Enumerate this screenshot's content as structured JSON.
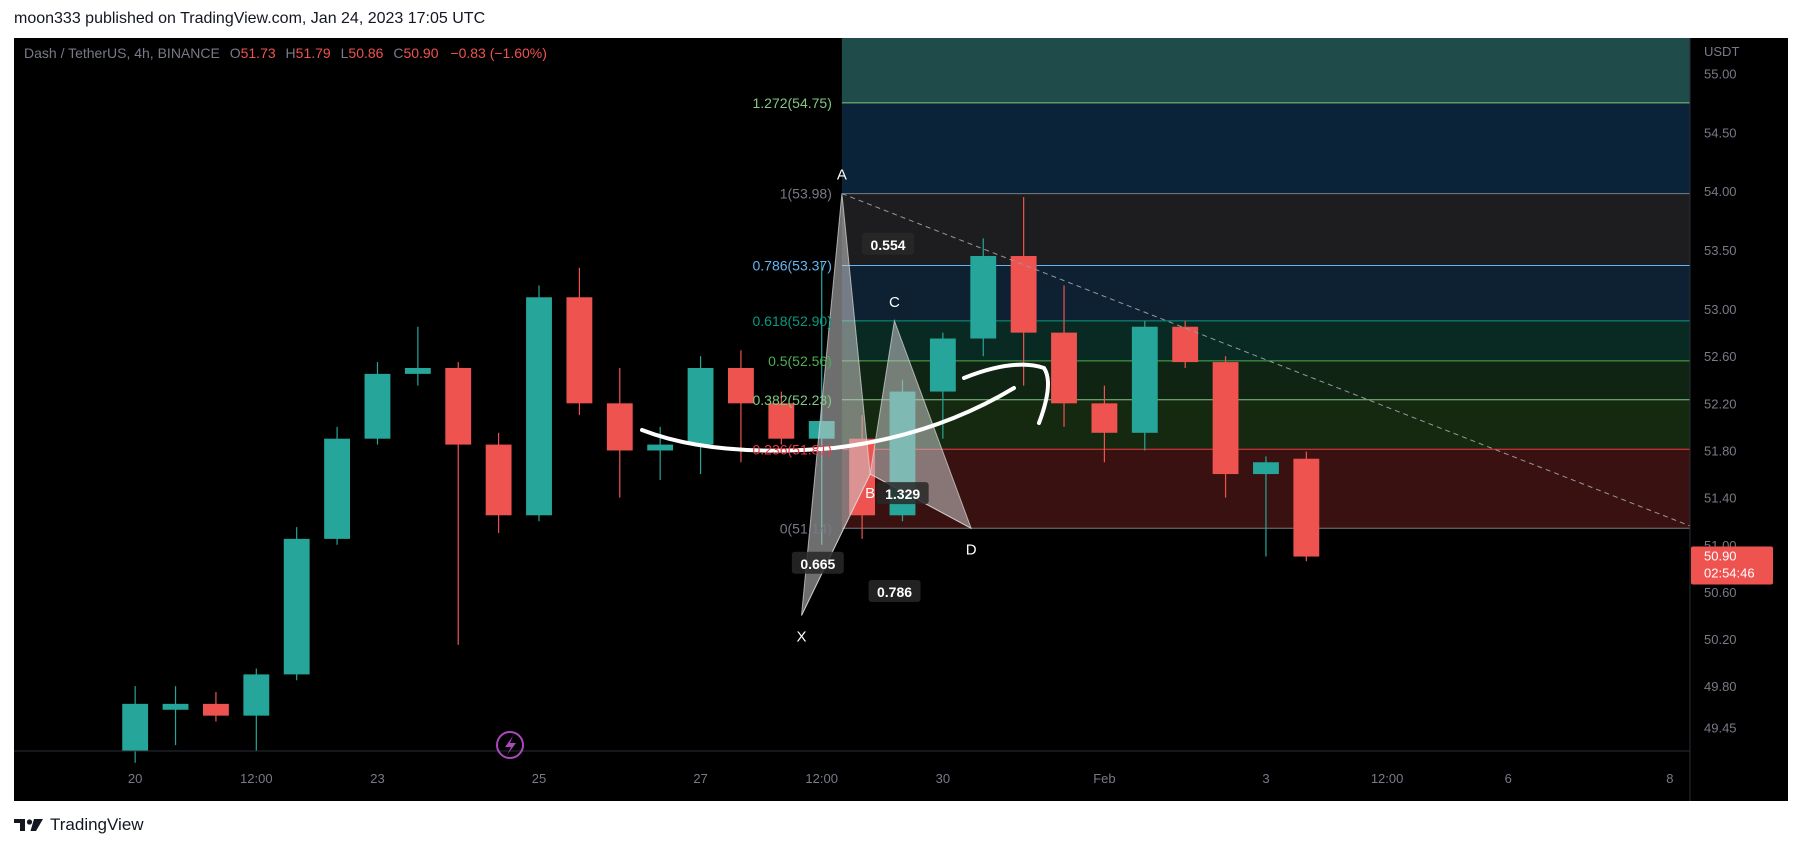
{
  "header": {
    "publisher": "moon333 published on TradingView.com, Jan 24, 2023 17:05 UTC"
  },
  "footer": {
    "brand": "TradingView",
    "logo_icon": "tradingview-logo-icon"
  },
  "colors": {
    "up": "#26a69a",
    "down": "#ef5350",
    "background": "#000000",
    "price_tag": "#ef5350"
  },
  "chart_data": {
    "type": "candlestick",
    "symbol_line": {
      "name": "Dash / TetherUS, 4h, BINANCE",
      "o_label": "O",
      "o_value": "51.73",
      "h_label": "H",
      "h_value": "51.79",
      "l_label": "L",
      "l_value": "50.86",
      "c_label": "C",
      "c_value": "50.90",
      "change": "−0.83 (−1.60%)"
    },
    "y_axis": {
      "currency": "USDT",
      "ylim": [
        49.25,
        55.3
      ],
      "ticks": [
        "55.00",
        "54.50",
        "54.00",
        "53.50",
        "53.00",
        "52.60",
        "52.20",
        "51.80",
        "51.40",
        "51.00",
        "50.60",
        "50.20",
        "49.80",
        "49.45"
      ]
    },
    "x_axis": {
      "ticks": [
        {
          "label": "20",
          "bar": -23
        },
        {
          "label": "12:00",
          "bar": -20
        },
        {
          "label": "23",
          "bar": -17
        },
        {
          "label": "25",
          "bar": -13
        },
        {
          "label": "27",
          "bar": -9
        },
        {
          "label": "12:00",
          "bar": -6
        },
        {
          "label": "30",
          "bar": -3
        },
        {
          "label": "Feb",
          "bar": 1
        },
        {
          "label": "3",
          "bar": 5
        },
        {
          "label": "12:00",
          "bar": 8
        },
        {
          "label": "6",
          "bar": 11
        },
        {
          "label": "8",
          "bar": 15
        }
      ],
      "xlim": [
        -26,
        15.5
      ]
    },
    "candles": [
      {
        "o": 49.25,
        "h": 49.8,
        "l": 49.15,
        "c": 49.65
      },
      {
        "o": 49.6,
        "h": 49.8,
        "l": 49.3,
        "c": 49.65
      },
      {
        "o": 49.65,
        "h": 49.75,
        "l": 49.5,
        "c": 49.55
      },
      {
        "o": 49.55,
        "h": 49.95,
        "l": 49.25,
        "c": 49.9
      },
      {
        "o": 49.9,
        "h": 51.15,
        "l": 49.85,
        "c": 51.05
      },
      {
        "o": 51.05,
        "h": 52.0,
        "l": 51.0,
        "c": 51.9
      },
      {
        "o": 51.9,
        "h": 52.55,
        "l": 51.85,
        "c": 52.45
      },
      {
        "o": 52.45,
        "h": 52.85,
        "l": 52.35,
        "c": 52.5
      },
      {
        "o": 52.5,
        "h": 52.55,
        "l": 50.15,
        "c": 51.85
      },
      {
        "o": 51.85,
        "h": 51.95,
        "l": 51.1,
        "c": 51.25
      },
      {
        "o": 51.25,
        "h": 53.2,
        "l": 51.2,
        "c": 53.1
      },
      {
        "o": 53.1,
        "h": 53.35,
        "l": 52.1,
        "c": 52.2
      },
      {
        "o": 52.2,
        "h": 52.5,
        "l": 51.4,
        "c": 51.8
      },
      {
        "o": 51.8,
        "h": 52.0,
        "l": 51.55,
        "c": 51.85
      },
      {
        "o": 51.85,
        "h": 52.6,
        "l": 51.6,
        "c": 52.5
      },
      {
        "o": 52.5,
        "h": 52.65,
        "l": 51.7,
        "c": 52.2
      },
      {
        "o": 52.2,
        "h": 52.3,
        "l": 51.85,
        "c": 51.9
      },
      {
        "o": 51.9,
        "h": 53.4,
        "l": 51.0,
        "c": 52.05
      },
      {
        "o": 51.9,
        "h": 52.1,
        "l": 51.05,
        "c": 51.25
      },
      {
        "o": 51.25,
        "h": 52.4,
        "l": 51.2,
        "c": 52.3
      },
      {
        "o": 52.3,
        "h": 52.8,
        "l": 51.9,
        "c": 52.75
      },
      {
        "o": 52.75,
        "h": 53.6,
        "l": 52.6,
        "c": 53.45
      },
      {
        "o": 53.45,
        "h": 53.95,
        "l": 52.35,
        "c": 52.8
      },
      {
        "o": 52.8,
        "h": 53.2,
        "l": 52.0,
        "c": 52.2
      },
      {
        "o": 52.2,
        "h": 52.35,
        "l": 51.7,
        "c": 51.95
      },
      {
        "o": 51.95,
        "h": 52.9,
        "l": 51.8,
        "c": 52.85
      },
      {
        "o": 52.85,
        "h": 52.9,
        "l": 52.5,
        "c": 52.55
      },
      {
        "o": 52.55,
        "h": 52.6,
        "l": 51.4,
        "c": 51.6
      },
      {
        "o": 51.6,
        "h": 51.75,
        "l": 50.9,
        "c": 51.7
      },
      {
        "o": 51.73,
        "h": 51.79,
        "l": 50.86,
        "c": 50.9
      }
    ],
    "candles_start_bar": -23,
    "fib_levels": [
      {
        "level": "1.272(54.75)",
        "price": 54.75,
        "color": "#81c784"
      },
      {
        "level": "1(53.98)",
        "price": 53.98,
        "color": "#787b86"
      },
      {
        "level": "0.786(53.37)",
        "price": 53.37,
        "color": "#64b5f6"
      },
      {
        "level": "0.618(52.90)",
        "price": 52.9,
        "color": "#089981"
      },
      {
        "level": "0.5(52.56)",
        "price": 52.56,
        "color": "#4caf50"
      },
      {
        "level": "0.382(52.23)",
        "price": 52.23,
        "color": "#81c784"
      },
      {
        "level": "0.236(51.81)",
        "price": 51.81,
        "color": "#f23645"
      },
      {
        "level": "0(51.14)",
        "price": 51.14,
        "color": "#787b86"
      }
    ],
    "fib_zone_fills": [
      "#1f4b4a",
      "#0b2338",
      "#1d1d1f",
      "#0e2133",
      "#092a22",
      "#102414",
      "#14290f",
      "#3a1111"
    ],
    "harmonic": {
      "points": [
        {
          "name": "X",
          "bar": -6.5,
          "price": 50.4
        },
        {
          "name": "A",
          "bar": -5.5,
          "price": 53.98
        },
        {
          "name": "B",
          "bar": -4.8,
          "price": 51.6
        },
        {
          "name": "C",
          "bar": -4.2,
          "price": 52.9
        },
        {
          "name": "D",
          "bar": -2.3,
          "price": 51.14
        }
      ],
      "ratios": [
        "0.554",
        "0.665",
        "0.786",
        "1.329"
      ]
    },
    "trendline": {
      "from_bar": -5.5,
      "from_price": 53.98,
      "to_bar": 15.5,
      "to_price": 51.16
    },
    "last_price": {
      "value": "50.90",
      "countdown": "02:54:46"
    },
    "events_icon": "lightning-icon"
  }
}
